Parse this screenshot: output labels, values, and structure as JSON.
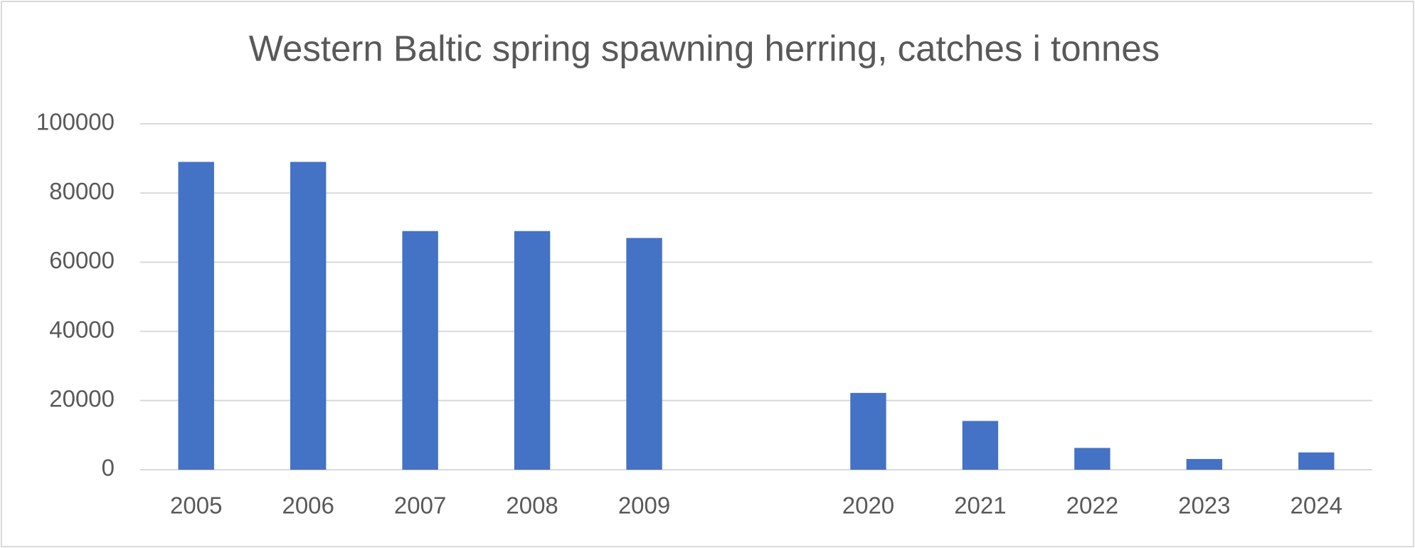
{
  "chart_data": {
    "type": "bar",
    "title": "Western Baltic spring spawning herring, catches i tonnes",
    "categories": [
      "2005",
      "2006",
      "2007",
      "2008",
      "2009",
      null,
      "2020",
      "2021",
      "2022",
      "2023",
      "2024"
    ],
    "values": [
      89000,
      89000,
      69000,
      69000,
      67000,
      null,
      22200,
      14100,
      6300,
      3100,
      5000
    ],
    "color": "#4472c4",
    "ylim": [
      0,
      100000
    ],
    "yticks": [
      0,
      20000,
      40000,
      60000,
      80000,
      100000
    ],
    "grid": true
  }
}
